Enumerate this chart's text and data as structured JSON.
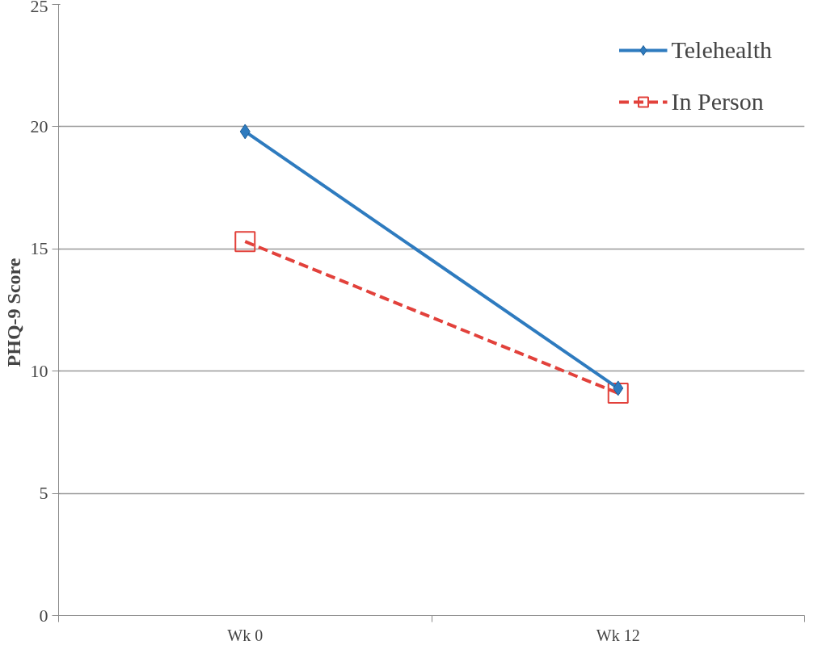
{
  "chart_data": {
    "type": "line",
    "ylabel": "PHQ-9  Score",
    "categories": [
      "Wk 0",
      "Wk 12"
    ],
    "series": [
      {
        "name": "Telehealth",
        "color": "#2e7bbf",
        "values": [
          19.8,
          9.3
        ],
        "marker": "diamond",
        "line_style": "solid"
      },
      {
        "name": "In Person",
        "color": "#e2413b",
        "values": [
          15.3,
          9.1
        ],
        "marker": "square",
        "line_style": "dashed"
      }
    ],
    "ylim": [
      0,
      25
    ],
    "yticks": [
      0,
      5,
      10,
      15,
      20,
      25
    ],
    "grid": "y",
    "legend": "top right"
  }
}
